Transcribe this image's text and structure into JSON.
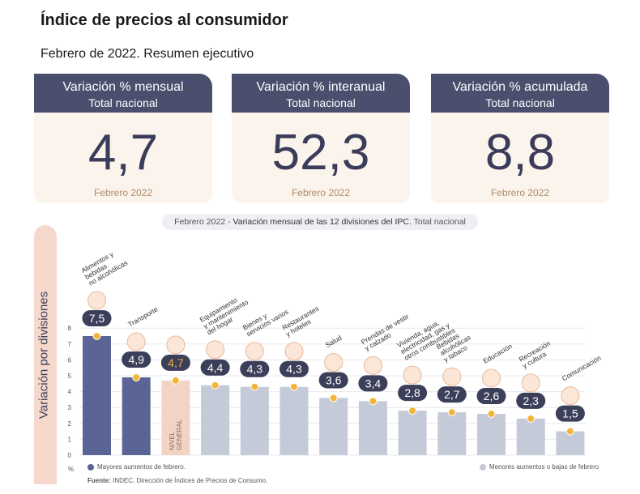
{
  "header": {
    "title": "Índice de precios al consumidor",
    "subtitle": "Febrero de 2022. Resumen ejecutivo"
  },
  "cards": [
    {
      "heading": "Variación % mensual",
      "sub": "Total nacional",
      "value": "4,7",
      "date": "Febrero 2022"
    },
    {
      "heading": "Variación % interanual",
      "sub": "Total nacional",
      "value": "52,3",
      "date": "Febrero 2022"
    },
    {
      "heading": "Variación % acumulada",
      "sub": "Total nacional",
      "value": "8,8",
      "date": "Febrero 2022"
    }
  ],
  "caption": {
    "prefix": "Febrero 2022 - ",
    "main": "Variación mensual de las 12 divisiones del IPC.",
    "suffix": " Total nacional"
  },
  "footer": {
    "legend_high": "Mayores aumentos de febrero.",
    "legend_low": "Menores aumentos o bajas de febrero",
    "source_label": "Fuente:",
    "source_text": " INDEC, Dirección de Índices de Precios de Consumo."
  },
  "colors": {
    "high": "#5a6495",
    "low": "#c5cad8",
    "general": "#f2d4c5",
    "dot": "#f2b53a",
    "bubble": "#3c3f5a"
  },
  "chart_data": {
    "type": "bar",
    "ylabel": "Variación por divisiones",
    "yunit": "%",
    "ylim": [
      0,
      8
    ],
    "yticks": [
      0,
      1,
      2,
      3,
      4,
      5,
      6,
      7,
      8
    ],
    "categories": [
      "Alimentos y bebidas no alcohólicas",
      "Transporte",
      "Nivel general",
      "Equipamiento y mantenimiento del hogar",
      "Bienes y servicios varios",
      "Restaurantes y hoteles",
      "Salud",
      "Prendas de vestir y calzado",
      "Vivienda, agua, electricidad, gas y otros combustibles",
      "Bebidas alcohólicas y tabaco",
      "Educación",
      "Recreación y cultura",
      "Comunicación"
    ],
    "values": [
      7.5,
      4.9,
      4.7,
      4.4,
      4.3,
      4.3,
      3.6,
      3.4,
      2.8,
      2.7,
      2.6,
      2.3,
      1.5
    ],
    "value_labels": [
      "7,5",
      "4,9",
      "4,7",
      "4,4",
      "4,3",
      "4,3",
      "3,6",
      "3,4",
      "2,8",
      "2,7",
      "2,6",
      "2,3",
      "1,5"
    ],
    "groups": [
      "high",
      "high",
      "general",
      "low",
      "low",
      "low",
      "low",
      "low",
      "low",
      "low",
      "low",
      "low",
      "low"
    ],
    "category_lines": [
      [
        "Alimentos y",
        "bebidas",
        "no alcohólicas"
      ],
      [
        "Transporte"
      ],
      [],
      [
        "Equipamiento",
        "y mantenimiento",
        "del hogar"
      ],
      [
        "Bienes y",
        "servicios varios"
      ],
      [
        "Restaurantes",
        "y hoteles"
      ],
      [
        "Salud"
      ],
      [
        "Prendas de vestir",
        "y calzado"
      ],
      [
        "Vivienda, agua,",
        "electricidad, gas y",
        "otros combustibles"
      ],
      [
        "Bebidas",
        "alcohólicas",
        "y tabaco"
      ],
      [
        "Educación"
      ],
      [
        "Recreación",
        "y cultura"
      ],
      [
        "Comunicación"
      ]
    ],
    "bar_inner_label": [
      "NIVEL",
      "GENERAL"
    ],
    "icons": [
      "food-icon",
      "car-icon",
      "bag-icon",
      "hammer-icon",
      "comb-icon",
      "cutlery-icon",
      "health-cross-icon",
      "shirt-icon",
      "bulb-icon",
      "bottle-icon",
      "book-icon",
      "sun-icon",
      "phone-icon"
    ]
  }
}
